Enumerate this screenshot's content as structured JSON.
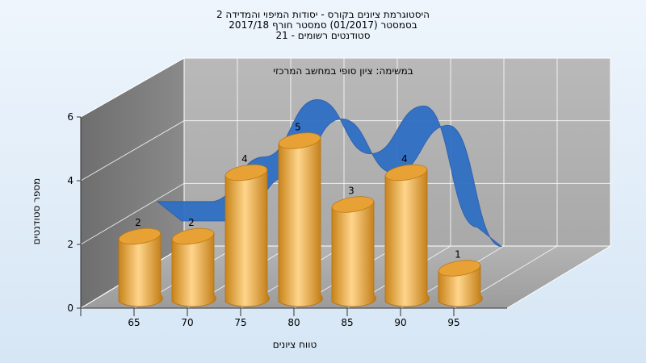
{
  "chart_data": {
    "type": "bar",
    "title_lines": [
      "היסטוגרמת ציונים בקורס - יסודות המיפוי והמדידה 2",
      "בסמסטר  (01/2017)  סמסטר חורף 2017/18",
      "סטודנטים רשומים - 21"
    ],
    "subtitle": "במשימה: ציון סופי במחשב המרכזי",
    "xlabel": "טווח ציונים",
    "ylabel": "מספר סטודנטים",
    "x_ticks": [
      "65",
      "70",
      "75",
      "80",
      "85",
      "90",
      "95"
    ],
    "y_ticks": [
      "0",
      "2",
      "4",
      "6"
    ],
    "ylim": [
      0,
      6
    ],
    "grid": true,
    "series": [
      {
        "style": "cylinder",
        "color": "#f0b24a",
        "values": [
          2,
          2,
          4,
          5,
          3,
          4,
          1
        ],
        "labels": [
          "2",
          "2",
          "4",
          "5",
          "3",
          "4",
          "1"
        ]
      },
      {
        "style": "ribbon",
        "color": "#2f6fc4",
        "values": [
          3,
          3,
          4.4,
          6.2,
          4.5,
          6.0,
          2.2
        ]
      }
    ]
  }
}
